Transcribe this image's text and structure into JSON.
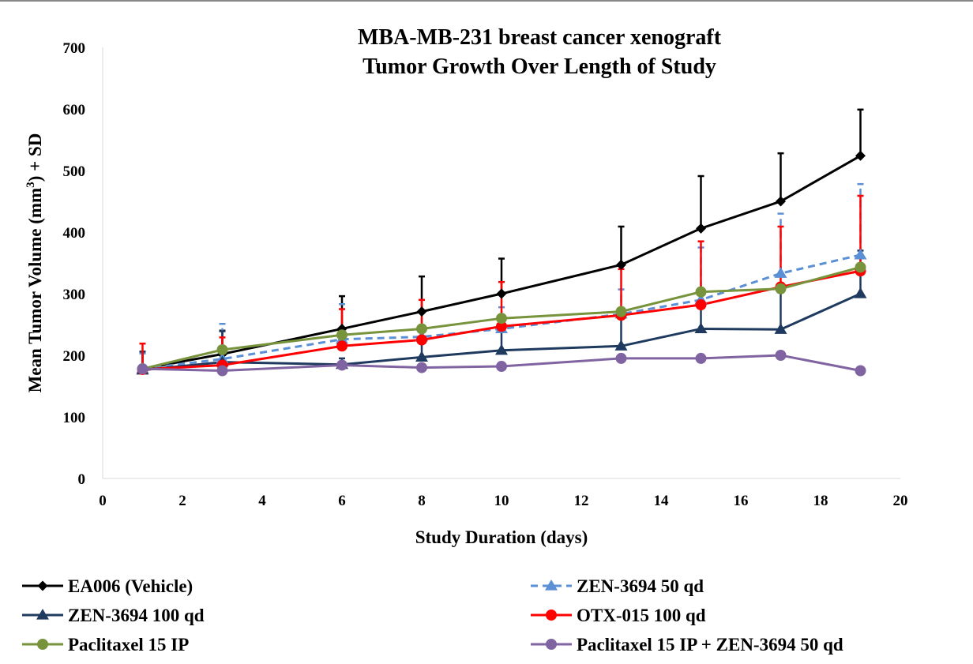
{
  "chart_data": {
    "type": "line",
    "title": [
      "MBA-MB-231 breast cancer xenograft",
      "Tumor Growth Over Length of Study"
    ],
    "xlabel": "Study Duration (days)",
    "ylabel_main": "Mean Tumor Volume (mm",
    "ylabel_sup": "3",
    "ylabel_tail": ") + SD",
    "xlim": [
      0,
      20
    ],
    "ylim": [
      0,
      700
    ],
    "xticks": [
      0,
      2,
      4,
      6,
      8,
      10,
      12,
      14,
      16,
      18,
      20
    ],
    "yticks": [
      0,
      100,
      200,
      300,
      400,
      500,
      600,
      700
    ],
    "grid": false,
    "legend_position": "bottom",
    "x": [
      1,
      3,
      6,
      8,
      10,
      13,
      15,
      17,
      19
    ],
    "series": [
      {
        "name": "EA006 (Vehicle)",
        "color": "#000000",
        "marker": "diamond",
        "dashed": false,
        "values": [
          178,
          202,
          243,
          271,
          300,
          347,
          406,
          450,
          524
        ],
        "errors": [
          28,
          38,
          53,
          57,
          57,
          62,
          85,
          78,
          75
        ]
      },
      {
        "name": "ZEN-3694 50 qd",
        "color": "#5b8fd6",
        "marker": "triangle",
        "dashed": true,
        "values": [
          178,
          194,
          226,
          230,
          243,
          267,
          290,
          333,
          363
        ],
        "errors": [
          25,
          57,
          57,
          40,
          35,
          40,
          85,
          97,
          115
        ]
      },
      {
        "name": "ZEN-3694 100 qd",
        "color": "#1f3a5f",
        "marker": "triangle",
        "dashed": false,
        "values": [
          176,
          189,
          185,
          197,
          208,
          215,
          243,
          242,
          300
        ],
        "errors": [
          30,
          50,
          10,
          25,
          40,
          50,
          40,
          60,
          70
        ]
      },
      {
        "name": "OTX-015 100 qd",
        "color": "#ff0000",
        "marker": "circle",
        "dashed": false,
        "values": [
          177,
          184,
          215,
          225,
          247,
          265,
          282,
          311,
          337
        ],
        "errors": [
          42,
          45,
          60,
          65,
          72,
          75,
          103,
          98,
          122
        ]
      },
      {
        "name": "Paclitaxel 15 IP",
        "color": "#77933c",
        "marker": "circle",
        "dashed": false,
        "values": [
          178,
          209,
          233,
          243,
          260,
          271,
          303,
          308,
          343
        ],
        "errors": [
          0,
          0,
          0,
          0,
          0,
          0,
          0,
          0,
          0
        ]
      },
      {
        "name": "Paclitaxel 15 IP + ZEN-3694 50 qd",
        "color": "#8064a2",
        "marker": "circle",
        "dashed": false,
        "values": [
          178,
          175,
          184,
          180,
          182,
          195,
          195,
          200,
          175
        ],
        "errors": [
          0,
          0,
          0,
          0,
          0,
          0,
          0,
          0,
          0
        ]
      }
    ]
  }
}
